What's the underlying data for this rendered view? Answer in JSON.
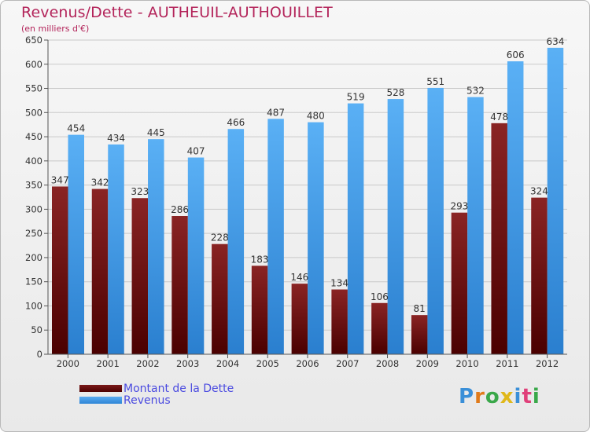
{
  "title": "Revenus/Dette - AUTHEUIL-AUTHOUILLET",
  "subtitle": "(en milliers d'€)",
  "logo": "Proxiti",
  "colors": {
    "title": "#b3245a",
    "debt": "#6e1010",
    "revenue": "#3c97e3",
    "legend_text": "#4a4ae0"
  },
  "chart_data": {
    "type": "bar",
    "title": "Revenus/Dette - AUTHEUIL-AUTHOUILLET",
    "subtitle": "(en milliers d'€)",
    "categories": [
      "2000",
      "2001",
      "2002",
      "2003",
      "2004",
      "2005",
      "2006",
      "2007",
      "2008",
      "2009",
      "2010",
      "2011",
      "2012"
    ],
    "series": [
      {
        "name": "Montant de la Dette",
        "values": [
          347,
          342,
          323,
          286,
          228,
          183,
          146,
          134,
          106,
          81,
          293,
          478,
          324
        ]
      },
      {
        "name": "Revenus",
        "values": [
          454,
          434,
          445,
          407,
          466,
          487,
          480,
          519,
          528,
          551,
          532,
          606,
          634
        ]
      }
    ],
    "ylim": [
      0,
      650
    ],
    "yticks": [
      0,
      50,
      100,
      150,
      200,
      250,
      300,
      350,
      400,
      450,
      500,
      550,
      600,
      650
    ],
    "grid": true,
    "legend": "bottom-left"
  }
}
